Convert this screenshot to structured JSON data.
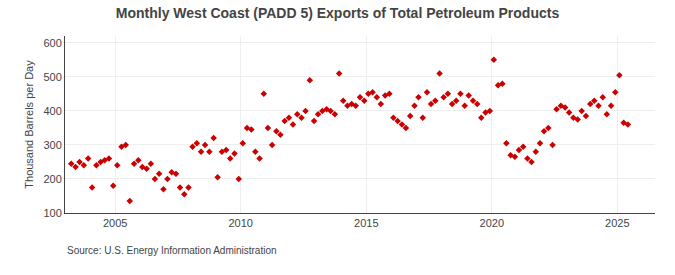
{
  "chart_data": {
    "type": "scatter",
    "title": "Monthly West Coast (PADD 5) Exports of Total Petroleum Products",
    "y_label": "Thousand Barrels per Day",
    "annotations": [
      "Source: U.S. Energy Information Administration"
    ],
    "color": "#cc0000",
    "marker": "diamond",
    "grid": true,
    "xlim": [
      2003.0,
      2026.5
    ],
    "xticks": [
      2005,
      2010,
      2015,
      2020,
      2025
    ],
    "ylim": [
      100,
      620
    ],
    "yticks": [
      100,
      200,
      300,
      400,
      500,
      600
    ],
    "x": [
      2003.25,
      2003.42,
      2003.58,
      2003.75,
      2003.92,
      2004.08,
      2004.25,
      2004.42,
      2004.58,
      2004.75,
      2004.92,
      2005.08,
      2005.25,
      2005.42,
      2005.58,
      2005.75,
      2005.92,
      2006.08,
      2006.25,
      2006.42,
      2006.58,
      2006.75,
      2006.92,
      2007.08,
      2007.25,
      2007.42,
      2007.58,
      2007.75,
      2007.92,
      2008.08,
      2008.25,
      2008.42,
      2008.58,
      2008.75,
      2008.92,
      2009.08,
      2009.25,
      2009.42,
      2009.58,
      2009.75,
      2009.92,
      2010.08,
      2010.25,
      2010.42,
      2010.58,
      2010.75,
      2010.92,
      2011.08,
      2011.25,
      2011.42,
      2011.58,
      2011.75,
      2011.92,
      2012.08,
      2012.25,
      2012.42,
      2012.58,
      2012.75,
      2012.92,
      2013.08,
      2013.25,
      2013.42,
      2013.58,
      2013.75,
      2013.92,
      2014.08,
      2014.25,
      2014.42,
      2014.58,
      2014.75,
      2014.92,
      2015.08,
      2015.25,
      2015.42,
      2015.58,
      2015.75,
      2015.92,
      2016.08,
      2016.25,
      2016.42,
      2016.58,
      2016.75,
      2016.92,
      2017.08,
      2017.25,
      2017.42,
      2017.58,
      2017.75,
      2017.92,
      2018.08,
      2018.25,
      2018.42,
      2018.58,
      2018.75,
      2018.92,
      2019.08,
      2019.25,
      2019.42,
      2019.58,
      2019.75,
      2019.92,
      2020.08,
      2020.25,
      2020.42,
      2020.58,
      2020.75,
      2020.92,
      2021.08,
      2021.25,
      2021.42,
      2021.58,
      2021.75,
      2021.92,
      2022.08,
      2022.25,
      2022.42,
      2022.58,
      2022.75,
      2022.92,
      2023.08,
      2023.25,
      2023.42,
      2023.58,
      2023.75,
      2023.92,
      2024.08,
      2024.25,
      2024.42,
      2024.58,
      2024.75,
      2024.92,
      2025.08,
      2025.25,
      2025.42
    ],
    "values": [
      245,
      235,
      250,
      240,
      260,
      175,
      240,
      250,
      255,
      260,
      180,
      240,
      295,
      300,
      135,
      245,
      255,
      235,
      230,
      245,
      200,
      215,
      170,
      200,
      220,
      215,
      175,
      155,
      175,
      295,
      305,
      280,
      300,
      280,
      320,
      205,
      280,
      285,
      260,
      275,
      200,
      305,
      350,
      345,
      280,
      260,
      450,
      350,
      300,
      340,
      330,
      370,
      380,
      360,
      390,
      380,
      400,
      490,
      370,
      390,
      400,
      405,
      400,
      390,
      510,
      430,
      415,
      420,
      415,
      440,
      430,
      450,
      455,
      440,
      420,
      445,
      450,
      380,
      370,
      360,
      350,
      385,
      415,
      440,
      380,
      455,
      420,
      430,
      510,
      440,
      450,
      420,
      430,
      450,
      415,
      445,
      430,
      420,
      380,
      395,
      400,
      550,
      475,
      480,
      305,
      270,
      265,
      285,
      295,
      260,
      250,
      280,
      305,
      340,
      350,
      300,
      405,
      415,
      410,
      395,
      380,
      375,
      400,
      385,
      420,
      430,
      415,
      440,
      390,
      415,
      455,
      505,
      365,
      360
    ]
  }
}
